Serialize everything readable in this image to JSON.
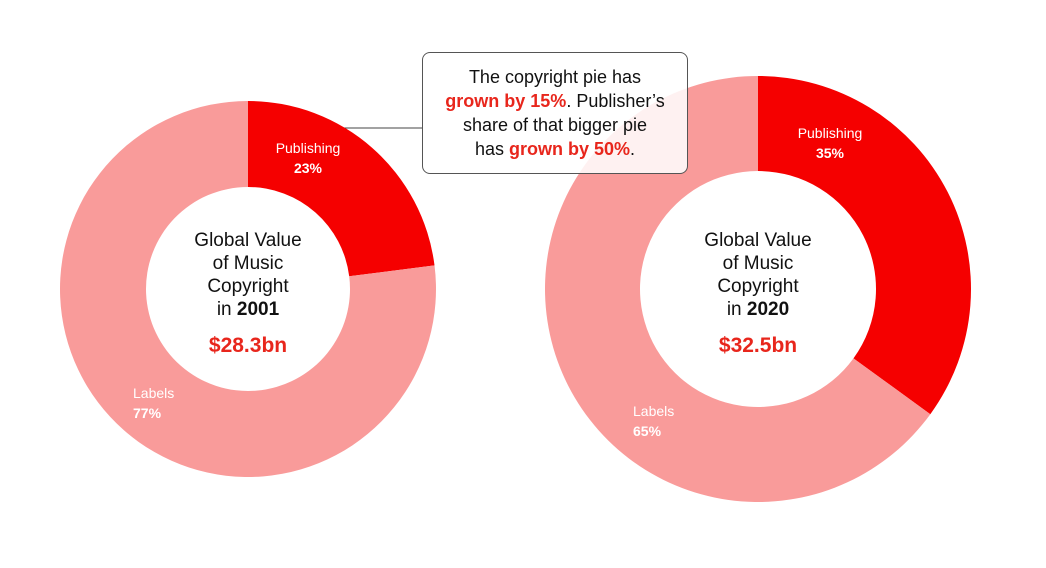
{
  "chart_data": [
    {
      "type": "pie",
      "center_lines": [
        "Global Value",
        "of Music",
        "Copyright"
      ],
      "center_in": "in",
      "year": "2001",
      "total_label": "$28.3bn",
      "total_bn": 28.3,
      "slices": [
        {
          "name": "Publishing",
          "percent": 23,
          "label": "23%"
        },
        {
          "name": "Labels",
          "percent": 77,
          "label": "77%"
        }
      ]
    },
    {
      "type": "pie",
      "center_lines": [
        "Global Value",
        "of Music",
        "Copyright"
      ],
      "center_in": "in",
      "year": "2020",
      "total_label": "$32.5bn",
      "total_bn": 32.5,
      "slices": [
        {
          "name": "Publishing",
          "percent": 35,
          "label": "35%"
        },
        {
          "name": "Labels",
          "percent": 65,
          "label": "65%"
        }
      ]
    }
  ],
  "colors": {
    "publishing": "#f50000",
    "labels": "#f99b9a",
    "accent": "#e8261c"
  },
  "callout": {
    "line1": "The copyright pie has",
    "hl1": "grown by 15%",
    "line2_rest": ". Publisher’s",
    "line3": "share of that bigger pie",
    "line4_pre": "has ",
    "hl2": "grown by 50%",
    "line4_post": "."
  }
}
